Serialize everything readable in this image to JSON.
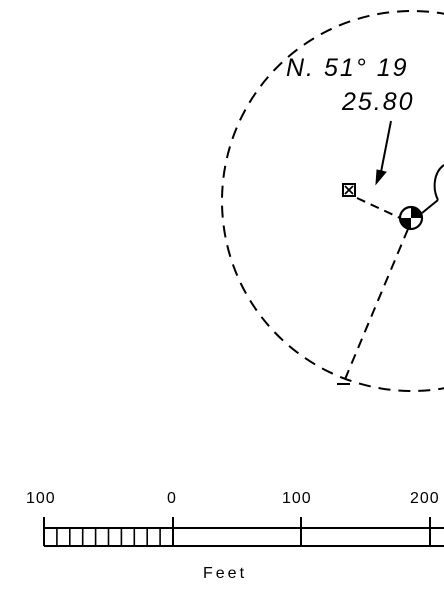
{
  "map": {
    "bearing_line1": "N. 51° 19",
    "bearing_line2": "25.80"
  },
  "scale_bar": {
    "labels": [
      "100",
      "0",
      "100",
      "200"
    ],
    "unit": "Feet",
    "minor_divisions": 10
  },
  "colors": {
    "ink": "#000000",
    "background": "#ffffff"
  },
  "symbols": {
    "well": "well-symbol",
    "marker": "boxed-x-marker"
  }
}
